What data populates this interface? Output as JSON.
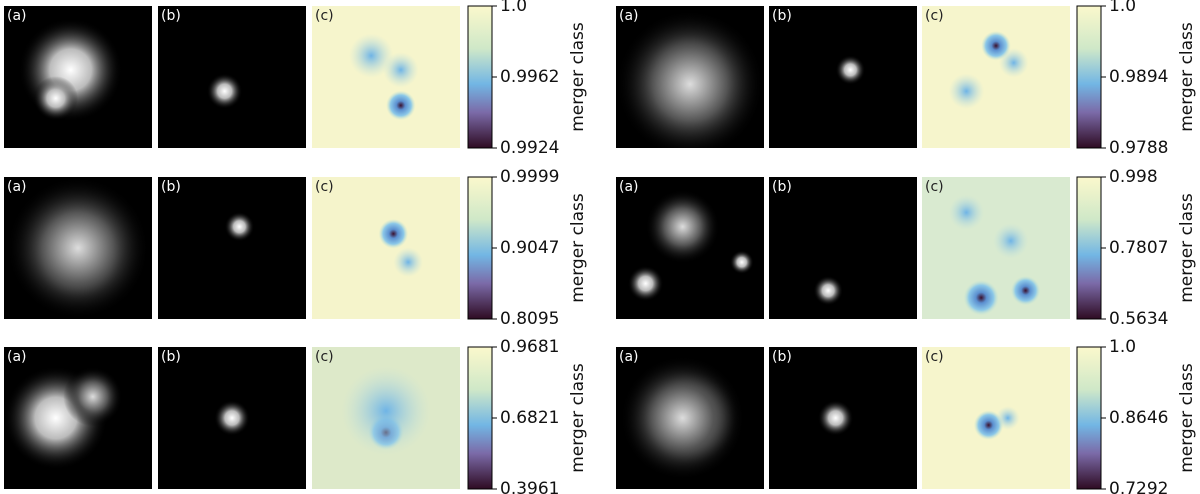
{
  "groups": [
    {
      "panels": [
        "(a)",
        "(b)",
        "(c)"
      ],
      "colorbar_ticks": [
        "1.0",
        "0.9962",
        "0.9924"
      ],
      "colorbar_label": "merger class"
    },
    {
      "panels": [
        "(a)",
        "(b)",
        "(c)"
      ],
      "colorbar_ticks": [
        "0.9999",
        "0.9047",
        "0.8095"
      ],
      "colorbar_label": "merger class"
    },
    {
      "panels": [
        "(a)",
        "(b)",
        "(c)"
      ],
      "colorbar_ticks": [
        "0.9681",
        "0.6821",
        "0.3961"
      ],
      "colorbar_label": "merger class"
    },
    {
      "panels": [
        "(a)",
        "(b)",
        "(c)"
      ],
      "colorbar_ticks": [
        "1.0",
        "0.9894",
        "0.9788"
      ],
      "colorbar_label": "merger class"
    },
    {
      "panels": [
        "(a)",
        "(b)",
        "(c)"
      ],
      "colorbar_ticks": [
        "0.998",
        "0.7807",
        "0.5634"
      ],
      "colorbar_label": "merger class"
    },
    {
      "panels": [
        "(a)",
        "(b)",
        "(c)"
      ],
      "colorbar_ticks": [
        "1.0",
        "0.8646",
        "0.7292"
      ],
      "colorbar_label": "merger class"
    }
  ]
}
